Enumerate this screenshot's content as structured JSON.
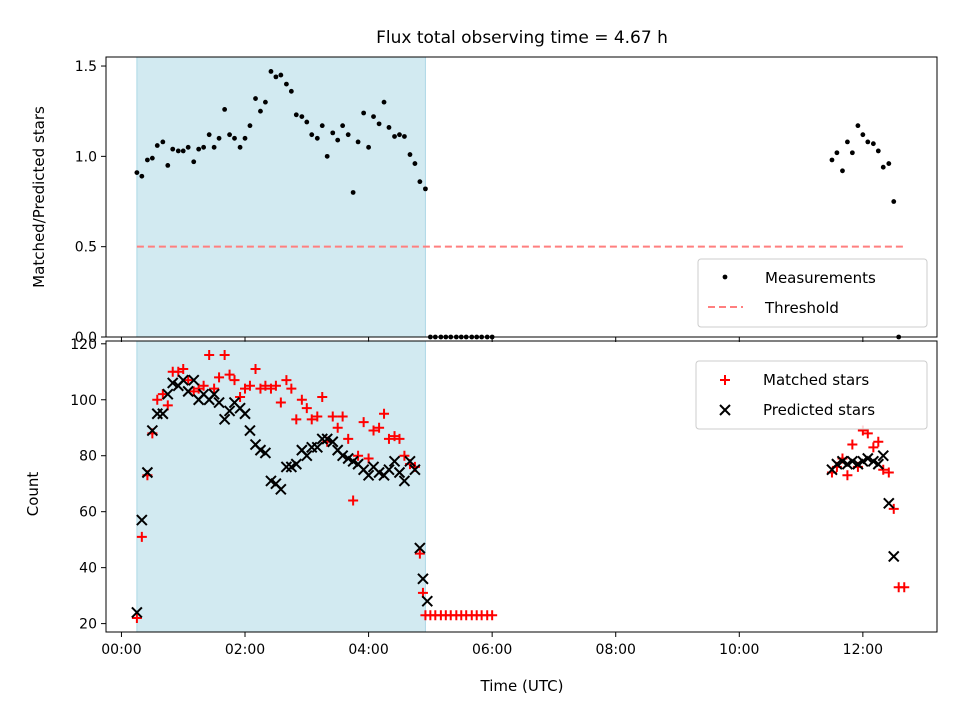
{
  "title": "Flux total observing time = 4.67 h",
  "chart_data": [
    {
      "type": "scatter",
      "panel": "top",
      "ylabel": "Matched/Predicted stars",
      "xlabel": "",
      "xlim_hours": [
        -0.25,
        13.2
      ],
      "ylim": [
        0.0,
        1.55
      ],
      "yticks": [
        "0.0",
        "0.5",
        "1.0",
        "1.5"
      ],
      "ytick_values": [
        0.0,
        0.5,
        1.0,
        1.5
      ],
      "shaded_interval_hours": [
        0.25,
        4.92
      ],
      "shade_color": "#add8e6",
      "legend": {
        "placement": "lower-right",
        "entries": [
          "Measurements",
          "Threshold"
        ]
      },
      "threshold": {
        "name": "Threshold",
        "value": 0.5,
        "x_range_hours": [
          0.25,
          12.65
        ],
        "color": "#ff7f7f",
        "style": "dashed"
      },
      "series": [
        {
          "name": "Measurements",
          "marker": "dot",
          "color": "#000000",
          "points": [
            [
              0.25,
              0.91
            ],
            [
              0.33,
              0.89
            ],
            [
              0.42,
              0.98
            ],
            [
              0.5,
              0.99
            ],
            [
              0.58,
              1.06
            ],
            [
              0.67,
              1.08
            ],
            [
              0.75,
              0.95
            ],
            [
              0.83,
              1.04
            ],
            [
              0.92,
              1.03
            ],
            [
              1.0,
              1.03
            ],
            [
              1.08,
              1.05
            ],
            [
              1.17,
              0.97
            ],
            [
              1.25,
              1.04
            ],
            [
              1.33,
              1.05
            ],
            [
              1.42,
              1.12
            ],
            [
              1.5,
              1.05
            ],
            [
              1.58,
              1.1
            ],
            [
              1.67,
              1.26
            ],
            [
              1.75,
              1.12
            ],
            [
              1.83,
              1.1
            ],
            [
              1.92,
              1.05
            ],
            [
              2.0,
              1.1
            ],
            [
              2.08,
              1.17
            ],
            [
              2.17,
              1.32
            ],
            [
              2.25,
              1.25
            ],
            [
              2.33,
              1.3
            ],
            [
              2.42,
              1.47
            ],
            [
              2.5,
              1.44
            ],
            [
              2.58,
              1.45
            ],
            [
              2.67,
              1.4
            ],
            [
              2.75,
              1.36
            ],
            [
              2.83,
              1.23
            ],
            [
              2.92,
              1.22
            ],
            [
              3.0,
              1.19
            ],
            [
              3.08,
              1.12
            ],
            [
              3.17,
              1.1
            ],
            [
              3.25,
              1.17
            ],
            [
              3.33,
              1.0
            ],
            [
              3.42,
              1.13
            ],
            [
              3.5,
              1.09
            ],
            [
              3.58,
              1.17
            ],
            [
              3.67,
              1.12
            ],
            [
              3.75,
              0.8
            ],
            [
              3.83,
              1.08
            ],
            [
              3.92,
              1.24
            ],
            [
              4.0,
              1.05
            ],
            [
              4.08,
              1.22
            ],
            [
              4.17,
              1.18
            ],
            [
              4.25,
              1.3
            ],
            [
              4.33,
              1.16
            ],
            [
              4.42,
              1.11
            ],
            [
              4.5,
              1.12
            ],
            [
              4.58,
              1.11
            ],
            [
              4.67,
              1.01
            ],
            [
              4.75,
              0.96
            ],
            [
              4.83,
              0.86
            ],
            [
              4.92,
              0.82
            ],
            [
              5.0,
              0.0
            ],
            [
              5.08,
              0.0
            ],
            [
              5.17,
              0.0
            ],
            [
              5.25,
              0.0
            ],
            [
              5.33,
              0.0
            ],
            [
              5.42,
              0.0
            ],
            [
              5.5,
              0.0
            ],
            [
              5.58,
              0.0
            ],
            [
              5.67,
              0.0
            ],
            [
              5.75,
              0.0
            ],
            [
              5.83,
              0.0
            ],
            [
              5.92,
              0.0
            ],
            [
              6.0,
              0.0
            ],
            [
              11.5,
              0.98
            ],
            [
              11.58,
              1.02
            ],
            [
              11.67,
              0.92
            ],
            [
              11.75,
              1.08
            ],
            [
              11.83,
              1.02
            ],
            [
              11.92,
              1.17
            ],
            [
              12.0,
              1.12
            ],
            [
              12.08,
              1.08
            ],
            [
              12.17,
              1.07
            ],
            [
              12.25,
              1.03
            ],
            [
              12.33,
              0.94
            ],
            [
              12.42,
              0.96
            ],
            [
              12.5,
              0.75
            ],
            [
              12.58,
              0.0
            ]
          ]
        }
      ]
    },
    {
      "type": "scatter",
      "panel": "bottom",
      "ylabel": "Count",
      "xlabel": "Time (UTC)",
      "xlim_hours": [
        -0.25,
        13.2
      ],
      "ylim": [
        17,
        121
      ],
      "yticks": [
        "20",
        "40",
        "60",
        "80",
        "100",
        "120"
      ],
      "ytick_values": [
        20,
        40,
        60,
        80,
        100,
        120
      ],
      "xticks": [
        "00:00",
        "02:00",
        "04:00",
        "06:00",
        "08:00",
        "10:00",
        "12:00"
      ],
      "xtick_hours": [
        0,
        2,
        4,
        6,
        8,
        10,
        12
      ],
      "shaded_interval_hours": [
        0.25,
        4.92
      ],
      "shade_color": "#add8e6",
      "legend": {
        "placement": "upper-right",
        "entries": [
          "Matched stars",
          "Predicted stars"
        ]
      },
      "series": [
        {
          "name": "Matched stars",
          "marker": "plus",
          "color": "#ff0000",
          "points": [
            [
              0.25,
              22
            ],
            [
              0.33,
              51
            ],
            [
              0.42,
              73
            ],
            [
              0.5,
              88
            ],
            [
              0.58,
              100
            ],
            [
              0.67,
              102
            ],
            [
              0.75,
              98
            ],
            [
              0.83,
              110
            ],
            [
              0.92,
              110
            ],
            [
              1.0,
              111
            ],
            [
              1.08,
              107
            ],
            [
              1.17,
              103
            ],
            [
              1.25,
              104
            ],
            [
              1.33,
              105
            ],
            [
              1.42,
              116
            ],
            [
              1.5,
              104
            ],
            [
              1.58,
              108
            ],
            [
              1.67,
              116
            ],
            [
              1.75,
              109
            ],
            [
              1.83,
              107
            ],
            [
              1.92,
              101
            ],
            [
              2.0,
              104
            ],
            [
              2.08,
              105
            ],
            [
              2.17,
              111
            ],
            [
              2.25,
              104
            ],
            [
              2.33,
              105
            ],
            [
              2.42,
              104
            ],
            [
              2.5,
              105
            ],
            [
              2.58,
              99
            ],
            [
              2.67,
              107
            ],
            [
              2.75,
              104
            ],
            [
              2.83,
              93
            ],
            [
              2.92,
              100
            ],
            [
              3.0,
              97
            ],
            [
              3.08,
              93
            ],
            [
              3.17,
              94
            ],
            [
              3.25,
              101
            ],
            [
              3.33,
              85
            ],
            [
              3.42,
              94
            ],
            [
              3.5,
              90
            ],
            [
              3.58,
              94
            ],
            [
              3.67,
              86
            ],
            [
              3.75,
              64
            ],
            [
              3.83,
              80
            ],
            [
              3.92,
              92
            ],
            [
              4.0,
              79
            ],
            [
              4.08,
              89
            ],
            [
              4.17,
              90
            ],
            [
              4.25,
              95
            ],
            [
              4.33,
              86
            ],
            [
              4.42,
              87
            ],
            [
              4.5,
              86
            ],
            [
              4.58,
              80
            ],
            [
              4.67,
              77
            ],
            [
              4.75,
              76
            ],
            [
              4.83,
              45
            ],
            [
              4.88,
              31
            ],
            [
              4.92,
              23
            ],
            [
              5.0,
              23
            ],
            [
              5.08,
              23
            ],
            [
              5.17,
              23
            ],
            [
              5.25,
              23
            ],
            [
              5.33,
              23
            ],
            [
              5.42,
              23
            ],
            [
              5.5,
              23
            ],
            [
              5.58,
              23
            ],
            [
              5.67,
              23
            ],
            [
              5.75,
              23
            ],
            [
              5.83,
              23
            ],
            [
              5.92,
              23
            ],
            [
              6.0,
              23
            ],
            [
              11.5,
              74
            ],
            [
              11.58,
              76
            ],
            [
              11.67,
              79
            ],
            [
              11.75,
              73
            ],
            [
              11.83,
              84
            ],
            [
              11.92,
              76
            ],
            [
              12.0,
              89
            ],
            [
              12.08,
              88
            ],
            [
              12.17,
              83
            ],
            [
              12.25,
              85
            ],
            [
              12.33,
              75
            ],
            [
              12.42,
              74
            ],
            [
              12.5,
              61
            ],
            [
              12.58,
              33
            ],
            [
              12.67,
              33
            ]
          ]
        },
        {
          "name": "Predicted stars",
          "marker": "x",
          "color": "#000000",
          "points": [
            [
              0.25,
              24
            ],
            [
              0.33,
              57
            ],
            [
              0.42,
              74
            ],
            [
              0.5,
              89
            ],
            [
              0.58,
              95
            ],
            [
              0.67,
              95
            ],
            [
              0.75,
              102
            ],
            [
              0.83,
              106
            ],
            [
              0.92,
              105
            ],
            [
              1.0,
              107
            ],
            [
              1.08,
              103
            ],
            [
              1.17,
              107
            ],
            [
              1.25,
              100
            ],
            [
              1.33,
              102
            ],
            [
              1.42,
              100
            ],
            [
              1.5,
              102
            ],
            [
              1.58,
              99
            ],
            [
              1.67,
              93
            ],
            [
              1.75,
              96
            ],
            [
              1.83,
              99
            ],
            [
              1.92,
              97
            ],
            [
              2.0,
              95
            ],
            [
              2.08,
              89
            ],
            [
              2.17,
              84
            ],
            [
              2.25,
              82
            ],
            [
              2.33,
              81
            ],
            [
              2.42,
              71
            ],
            [
              2.5,
              70
            ],
            [
              2.58,
              68
            ],
            [
              2.67,
              76
            ],
            [
              2.75,
              76
            ],
            [
              2.83,
              77
            ],
            [
              2.92,
              82
            ],
            [
              3.0,
              80
            ],
            [
              3.08,
              83
            ],
            [
              3.17,
              83
            ],
            [
              3.25,
              86
            ],
            [
              3.33,
              86
            ],
            [
              3.42,
              85
            ],
            [
              3.5,
              82
            ],
            [
              3.58,
              80
            ],
            [
              3.67,
              79
            ],
            [
              3.75,
              78
            ],
            [
              3.83,
              77
            ],
            [
              3.92,
              75
            ],
            [
              4.0,
              73
            ],
            [
              4.08,
              76
            ],
            [
              4.17,
              74
            ],
            [
              4.25,
              73
            ],
            [
              4.33,
              75
            ],
            [
              4.42,
              78
            ],
            [
              4.5,
              74
            ],
            [
              4.58,
              71
            ],
            [
              4.67,
              78
            ],
            [
              4.75,
              75
            ],
            [
              4.83,
              47
            ],
            [
              4.88,
              36
            ],
            [
              4.95,
              28
            ],
            [
              11.5,
              75
            ],
            [
              11.58,
              77
            ],
            [
              11.67,
              78
            ],
            [
              11.75,
              77
            ],
            [
              11.83,
              78
            ],
            [
              11.92,
              77
            ],
            [
              12.0,
              78
            ],
            [
              12.08,
              79
            ],
            [
              12.17,
              78
            ],
            [
              12.25,
              77
            ],
            [
              12.33,
              80
            ],
            [
              12.42,
              63
            ],
            [
              12.5,
              44
            ]
          ]
        }
      ]
    }
  ]
}
